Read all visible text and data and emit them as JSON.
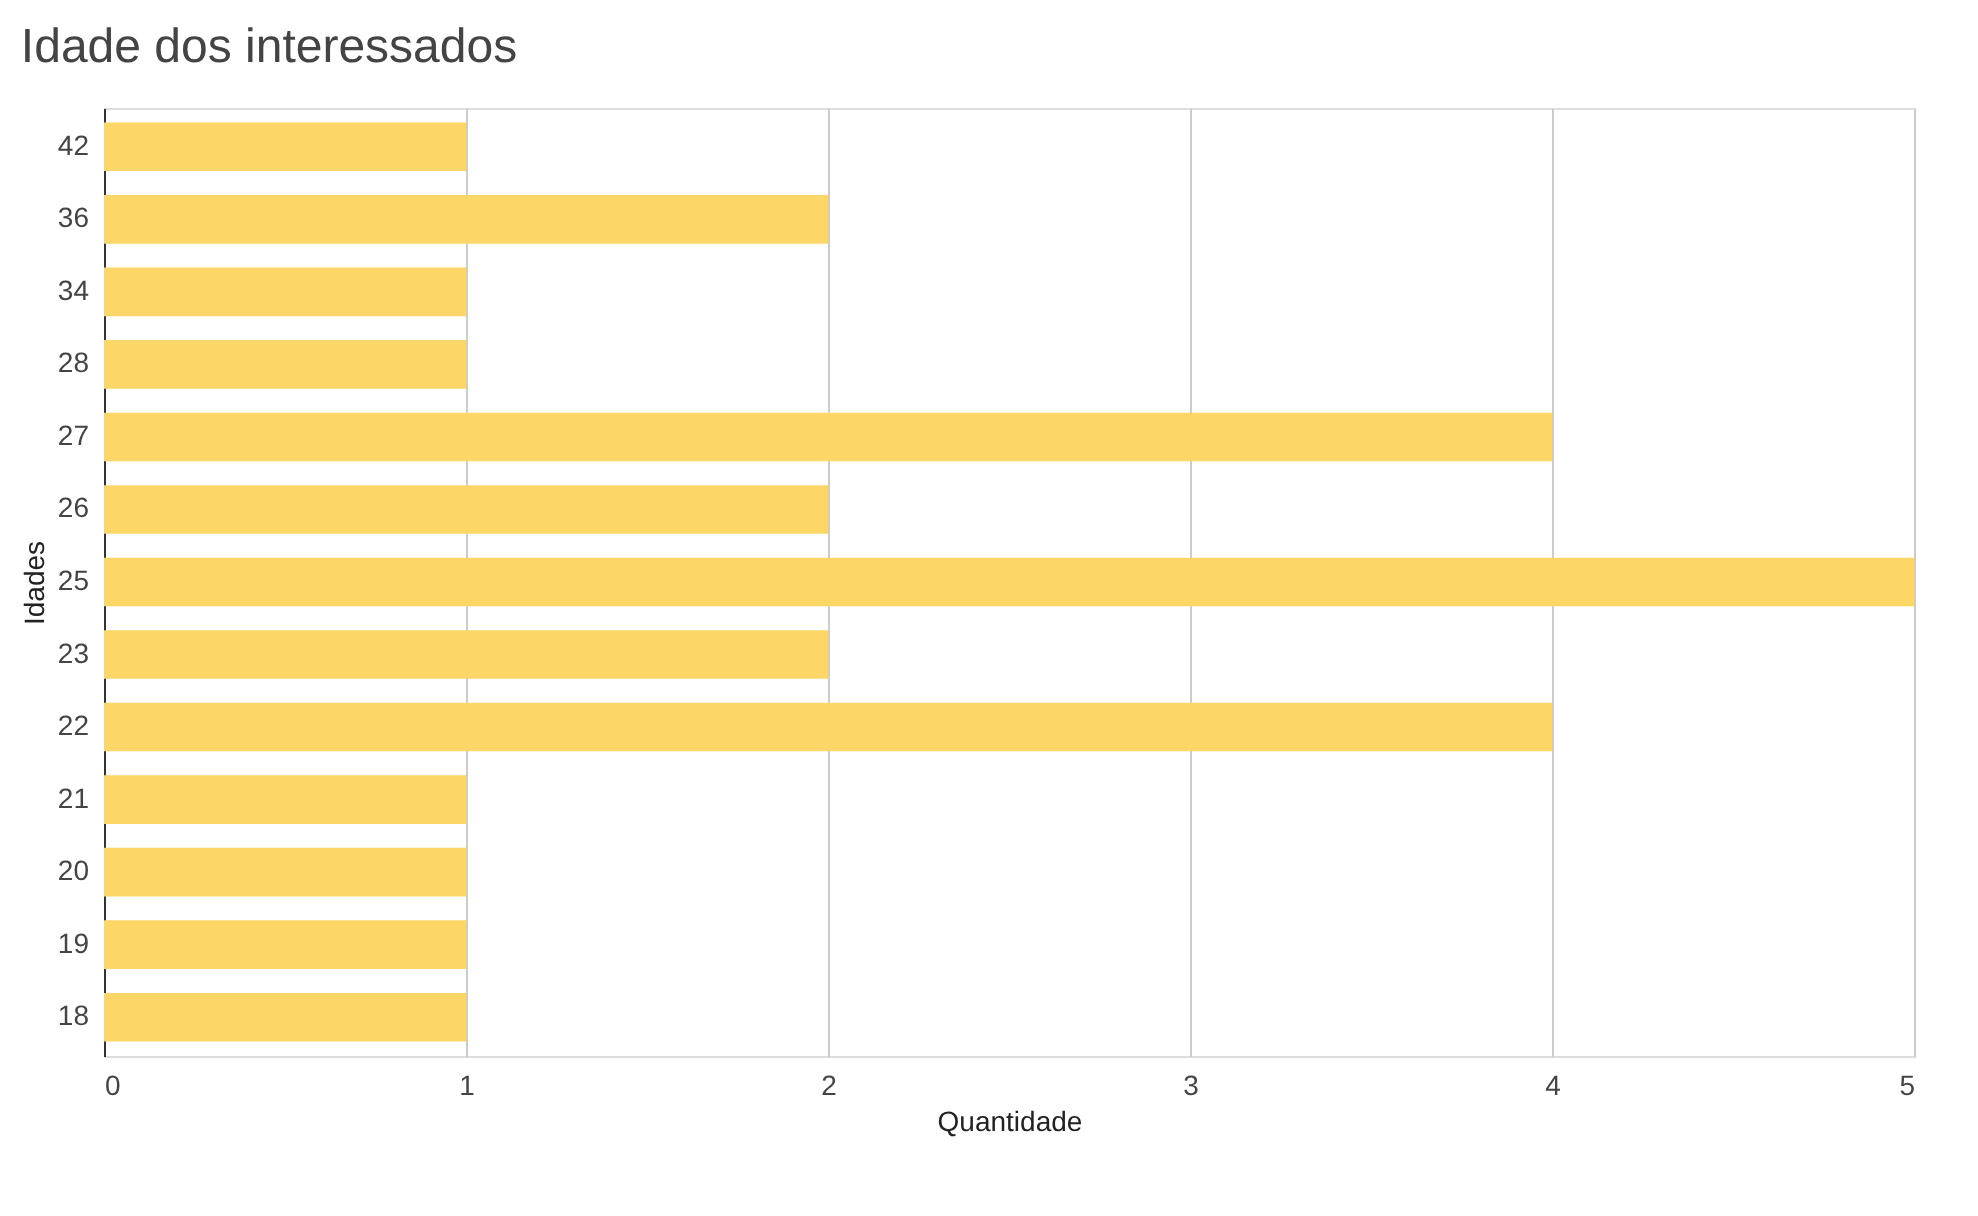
{
  "chart_data": {
    "type": "bar",
    "orientation": "horizontal",
    "title": "Idade dos interessados",
    "xlabel": "Quantidade",
    "ylabel": "Idades",
    "categories": [
      "42",
      "36",
      "34",
      "28",
      "27",
      "26",
      "25",
      "23",
      "22",
      "21",
      "20",
      "19",
      "18"
    ],
    "values": [
      1,
      2,
      1,
      1,
      4,
      2,
      5,
      2,
      4,
      1,
      1,
      1,
      1
    ],
    "color": "#fcd667",
    "xlim": [
      0,
      5
    ],
    "xticks": [
      0,
      1,
      2,
      3,
      4,
      5
    ],
    "grid": "x"
  }
}
